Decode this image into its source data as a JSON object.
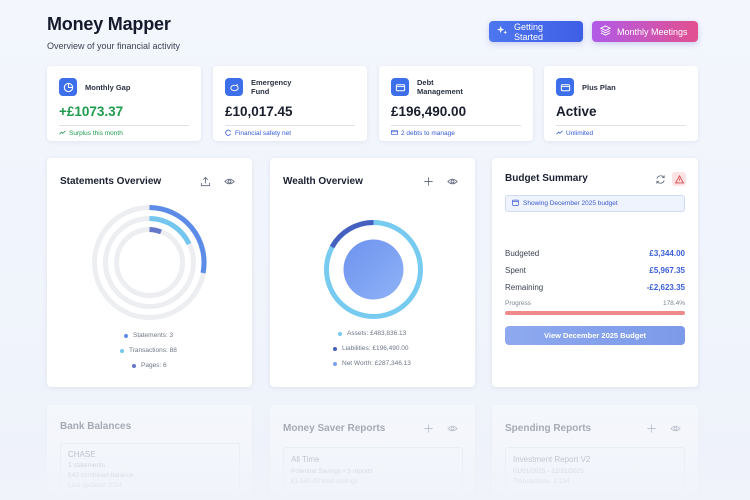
{
  "header": {
    "title": "Money Mapper",
    "subtitle": "Overview of your financial activity",
    "getting_started_label": "Getting Started",
    "monthly_meetings_label": "Monthly Meetings"
  },
  "stats": [
    {
      "label": "Monthly Gap",
      "value": "+£1073.37",
      "footnote": "Surplus this month",
      "icon": "chart-icon"
    },
    {
      "label": "Emergency Fund",
      "value": "£10,017.45",
      "footnote": "Financial safety net",
      "icon": "piggy-bank-icon"
    },
    {
      "label": "Debt Management",
      "value": "£196,490.00",
      "footnote": "2 debts to manage",
      "icon": "credit-card-icon"
    },
    {
      "label": "Plus Plan",
      "value": "Active",
      "footnote": "Unlimited",
      "icon": "card-icon"
    }
  ],
  "statements": {
    "title": "Statements Overview",
    "legend": [
      "Statements: 3",
      "Transactions: 88",
      "Pages: 6"
    ]
  },
  "wealth": {
    "title": "Wealth Overview",
    "legend": [
      "Assets: £483,836.13",
      "Liabilities: £196,490.00",
      "Net Worth: £287,346.13"
    ]
  },
  "budget": {
    "title": "Budget Summary",
    "badge": "Showing December 2025 budget",
    "rows": [
      {
        "label": "Budgeted",
        "value": "£3,344.00"
      },
      {
        "label": "Spent",
        "value": "£5,967.35"
      },
      {
        "label": "Remaining",
        "value": "-£2,623.35"
      }
    ],
    "progress_label": "Progress",
    "progress_value": "178.4%",
    "progress_fraction": 1.0,
    "button_label": "View December 2025 Budget"
  },
  "bank": {
    "title": "Bank Balances",
    "bank_name": "CHASE",
    "line1": "1 statements",
    "line2": "£43 combined balance",
    "line3": "Last updated 2024"
  },
  "saver": {
    "title": "Money Saver Reports",
    "period": "All Time",
    "line1": "Potential Savings • 3 reports",
    "line2": "£1,540.00 total savings"
  },
  "spending": {
    "title": "Spending Reports",
    "report_name": "Investment Report V2",
    "line1": "01/01/2025 - 12/31/2025",
    "line2": "Transactions: 1,234"
  },
  "colors": {
    "accent": "#3d6fea",
    "positive": "#1e9b4c",
    "negative_bar": "#ee8a8a"
  }
}
